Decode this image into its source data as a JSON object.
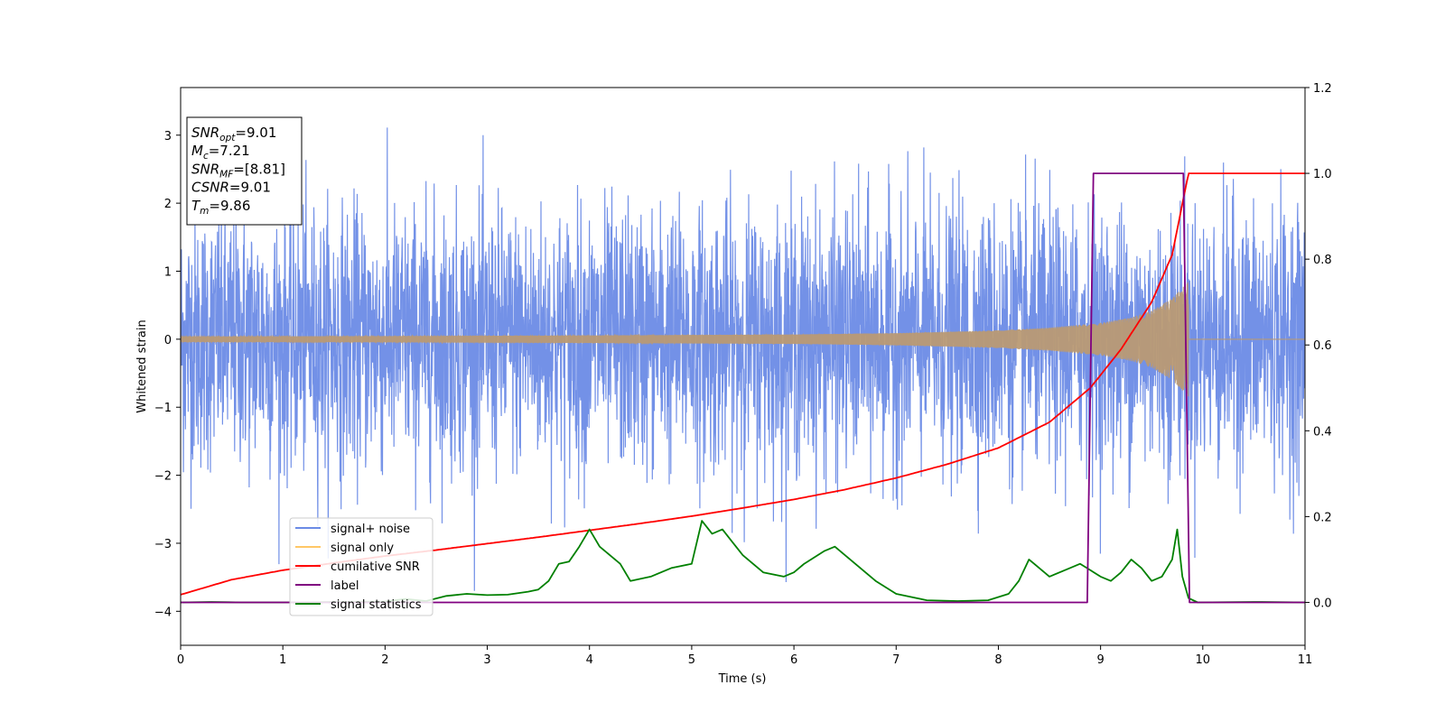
{
  "chart_data": {
    "type": "line",
    "xlabel": "Time (s)",
    "ylabel": "Whitened strain",
    "xlim": [
      0,
      11
    ],
    "ylim_left": [
      -4.5,
      3.7
    ],
    "ylim_right": [
      -0.1,
      1.2
    ],
    "x_ticks": [
      "0",
      "1",
      "2",
      "3",
      "4",
      "5",
      "6",
      "7",
      "8",
      "9",
      "10",
      "11"
    ],
    "y_left_ticks": [
      "3",
      "2",
      "1",
      "0",
      "−1",
      "−2",
      "−3",
      "−4"
    ],
    "y_left_tick_values": [
      3,
      2,
      1,
      0,
      -1,
      -2,
      -3,
      -4
    ],
    "y_right_ticks": [
      "1.2",
      "1.0",
      "0.8",
      "0.6",
      "0.4",
      "0.2",
      "0.0"
    ],
    "y_right_tick_values": [
      1.2,
      1.0,
      0.8,
      0.6,
      0.4,
      0.2,
      0.0
    ],
    "info_box": [
      {
        "main": "SNR",
        "sub": "opt",
        "rest": "=9.01"
      },
      {
        "main": "M",
        "sub": "c",
        "rest": "=7.21"
      },
      {
        "main": "SNR",
        "sub": "MF",
        "rest": "=[8.81]"
      },
      {
        "main": "CSNR",
        "sub": "",
        "rest": "=9.01"
      },
      {
        "main": "T",
        "sub": "m",
        "rest": "=9.86"
      }
    ],
    "legend_position": "lower-left",
    "colors": {
      "signal_noise": "#6b8be6",
      "signal_only": "#ffc766",
      "signal_overlap": "#b99a74",
      "cumulative_snr": "#ff0000",
      "label": "#800080",
      "signal_statistics": "#008000"
    },
    "series": [
      {
        "name": "signal+ noise",
        "axis": "left",
        "description_range": [
          -3.7,
          3.3
        ],
        "x_range": [
          0,
          11
        ]
      },
      {
        "name": "signal only",
        "axis": "left",
        "amplitude_envelope": {
          "x": [
            0,
            2,
            4,
            6,
            7,
            8,
            8.5,
            9,
            9.3,
            9.5,
            9.7,
            9.86
          ],
          "amp": [
            0.04,
            0.045,
            0.055,
            0.07,
            0.09,
            0.13,
            0.17,
            0.24,
            0.32,
            0.42,
            0.6,
            0.85
          ]
        },
        "merger_time": 9.86
      },
      {
        "name": "cumilative SNR",
        "axis": "right",
        "x": [
          0,
          0.5,
          1,
          1.5,
          2,
          2.5,
          3,
          3.5,
          4,
          4.5,
          5,
          5.5,
          6,
          6.5,
          7,
          7.5,
          8,
          8.5,
          8.9,
          9.2,
          9.5,
          9.7,
          9.86,
          11
        ],
        "y": [
          0.018,
          0.053,
          0.075,
          0.092,
          0.108,
          0.122,
          0.137,
          0.152,
          0.168,
          0.184,
          0.201,
          0.22,
          0.24,
          0.263,
          0.29,
          0.322,
          0.36,
          0.42,
          0.5,
          0.59,
          0.7,
          0.81,
          1.0,
          1.0
        ]
      },
      {
        "name": "label",
        "axis": "right",
        "x": [
          0,
          8.87,
          8.93,
          9.81,
          9.87,
          11
        ],
        "y": [
          0,
          0,
          1,
          1,
          0,
          0
        ]
      },
      {
        "name": "signal statistics",
        "axis": "right",
        "x": [
          0,
          0.3,
          0.6,
          1,
          1.5,
          2,
          2.2,
          2.4,
          2.6,
          2.8,
          3,
          3.2,
          3.4,
          3.5,
          3.6,
          3.7,
          3.8,
          3.9,
          4,
          4.1,
          4.3,
          4.4,
          4.6,
          4.8,
          5,
          5.1,
          5.2,
          5.3,
          5.4,
          5.5,
          5.7,
          5.9,
          6,
          6.1,
          6.3,
          6.4,
          6.6,
          6.8,
          7,
          7.3,
          7.6,
          7.9,
          8.1,
          8.2,
          8.3,
          8.5,
          8.7,
          8.8,
          8.9,
          9.0,
          9.1,
          9.2,
          9.3,
          9.4,
          9.5,
          9.6,
          9.7,
          9.75,
          9.8,
          9.86,
          9.95,
          10.5,
          11
        ],
        "y": [
          0,
          0.001,
          0,
          0,
          0.001,
          0.002,
          0.008,
          0.003,
          0.015,
          0.02,
          0.017,
          0.018,
          0.025,
          0.03,
          0.05,
          0.09,
          0.095,
          0.13,
          0.17,
          0.13,
          0.09,
          0.05,
          0.06,
          0.08,
          0.09,
          0.19,
          0.16,
          0.17,
          0.14,
          0.11,
          0.07,
          0.06,
          0.07,
          0.09,
          0.12,
          0.13,
          0.09,
          0.05,
          0.02,
          0.005,
          0.003,
          0.005,
          0.02,
          0.05,
          0.1,
          0.06,
          0.08,
          0.09,
          0.075,
          0.06,
          0.05,
          0.07,
          0.1,
          0.08,
          0.05,
          0.06,
          0.1,
          0.17,
          0.06,
          0.01,
          0,
          0.001,
          0
        ]
      }
    ]
  }
}
